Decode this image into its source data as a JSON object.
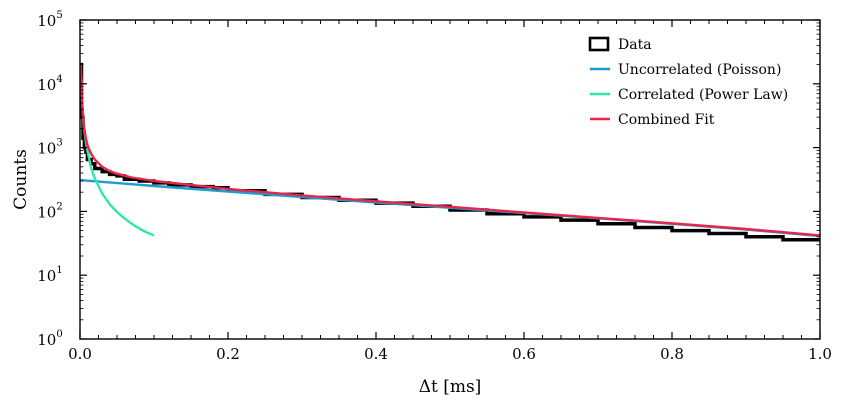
{
  "chart_data": {
    "type": "line",
    "title": "",
    "xlabel": "Δt [ms]",
    "ylabel": "Counts",
    "xlim": [
      0.0,
      1.0
    ],
    "ylim": [
      1,
      100000
    ],
    "yscale": "log",
    "grid": false,
    "legend_position": "top-right",
    "x_ticks": [
      "0.0",
      "0.2",
      "0.4",
      "0.6",
      "0.8",
      "1.0"
    ],
    "y_ticks": [
      {
        "base": "10",
        "exp": "0"
      },
      {
        "base": "10",
        "exp": "1"
      },
      {
        "base": "10",
        "exp": "2"
      },
      {
        "base": "10",
        "exp": "3"
      },
      {
        "base": "10",
        "exp": "4"
      },
      {
        "base": "10",
        "exp": "5"
      }
    ],
    "series": [
      {
        "name": "Data",
        "kind": "histogram",
        "color": "#000000",
        "x": [
          0.002,
          0.004,
          0.006,
          0.008,
          0.01,
          0.015,
          0.02,
          0.03,
          0.04,
          0.05,
          0.06,
          0.08,
          0.1,
          0.12,
          0.15,
          0.18,
          0.2,
          0.25,
          0.3,
          0.35,
          0.4,
          0.45,
          0.5,
          0.55,
          0.6,
          0.65,
          0.7,
          0.75,
          0.8,
          0.85,
          0.9,
          0.95,
          1.0
        ],
        "y": [
          20000,
          3000,
          1400,
          1000,
          850,
          650,
          560,
          470,
          420,
          380,
          360,
          320,
          300,
          280,
          260,
          245,
          235,
          210,
          185,
          165,
          150,
          135,
          120,
          105,
          92,
          82,
          73,
          64,
          56,
          50,
          45,
          40,
          36
        ]
      },
      {
        "name": "Uncorrelated (Poisson)",
        "kind": "line",
        "color": "#1f9bcf",
        "x": [
          0.0,
          0.1,
          0.2,
          0.3,
          0.4,
          0.5,
          0.6,
          0.7,
          0.8,
          0.9,
          1.0
        ],
        "y": [
          310,
          250,
          205,
          168,
          138,
          114,
          94,
          78,
          64,
          52,
          41
        ]
      },
      {
        "name": "Correlated (Power Law)",
        "kind": "line",
        "color": "#2ee8a8",
        "x": [
          0.002,
          0.003,
          0.005,
          0.008,
          0.01,
          0.015,
          0.02,
          0.03,
          0.04,
          0.05,
          0.06,
          0.07,
          0.08,
          0.09,
          0.1
        ],
        "y": [
          12000,
          5000,
          2200,
          1200,
          900,
          480,
          330,
          190,
          130,
          98,
          78,
          64,
          54,
          47,
          42
        ]
      },
      {
        "name": "Combined Fit",
        "kind": "line",
        "color": "#e8264a",
        "x": [
          0.001,
          0.002,
          0.003,
          0.005,
          0.008,
          0.01,
          0.015,
          0.02,
          0.03,
          0.04,
          0.05,
          0.07,
          0.1,
          0.15,
          0.2,
          0.3,
          0.4,
          0.5,
          0.6,
          0.7,
          0.8,
          0.9,
          1.0
        ],
        "y": [
          20000,
          10000,
          5000,
          2300,
          1400,
          1100,
          800,
          650,
          500,
          430,
          390,
          340,
          300,
          260,
          225,
          178,
          144,
          118,
          96,
          79,
          65,
          53,
          42
        ]
      }
    ]
  }
}
